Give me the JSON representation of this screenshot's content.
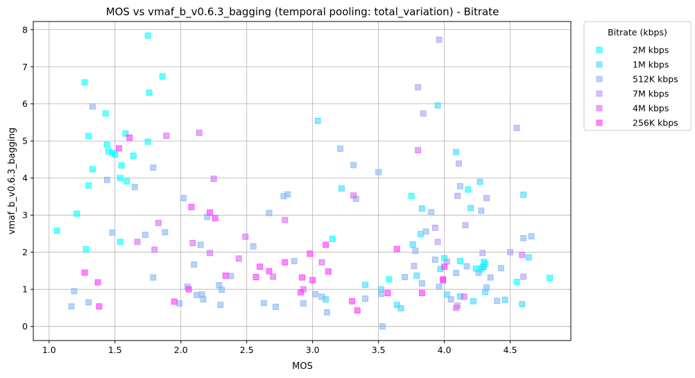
{
  "chart_data": {
    "type": "scatter",
    "title": "MOS vs vmaf_b_v0.6.3_bagging (temporal pooling: total_variation) - Bitrate",
    "xlabel": "MOS",
    "ylabel": "vmaf_b_v0.6.3_bagging",
    "xlim": [
      0.88,
      4.96
    ],
    "ylim": [
      -0.38,
      8.22
    ],
    "xticks": [
      "1.0",
      "1.5",
      "2.0",
      "2.5",
      "3.0",
      "3.5",
      "4.0",
      "4.5"
    ],
    "xtick_values": [
      1.0,
      1.5,
      2.0,
      2.5,
      3.0,
      3.5,
      4.0,
      4.5
    ],
    "yticks": [
      "0",
      "1",
      "2",
      "3",
      "4",
      "5",
      "6",
      "7",
      "8"
    ],
    "ytick_values": [
      0,
      1,
      2,
      3,
      4,
      5,
      6,
      7,
      8
    ],
    "grid": true,
    "marker": "square",
    "legend": {
      "title": "Bitrate (kbps)",
      "placement": "outside-top-right"
    },
    "series": [
      {
        "name": "2M kbps",
        "color": "#00ffff",
        "points": [
          [
            1.06,
            2.58
          ],
          [
            1.21,
            3.04
          ],
          [
            1.27,
            6.58
          ],
          [
            1.28,
            2.08
          ],
          [
            1.3,
            5.13
          ],
          [
            1.3,
            3.8
          ],
          [
            1.33,
            4.24
          ],
          [
            1.43,
            5.74
          ],
          [
            1.44,
            4.9
          ],
          [
            1.45,
            4.72
          ],
          [
            1.48,
            4.68
          ],
          [
            1.5,
            4.63
          ],
          [
            1.54,
            2.28
          ],
          [
            1.54,
            4.0
          ],
          [
            1.55,
            4.34
          ],
          [
            1.58,
            5.2
          ],
          [
            1.59,
            3.91
          ],
          [
            1.64,
            4.6
          ],
          [
            1.75,
            7.84
          ],
          [
            1.75,
            4.98
          ],
          [
            1.76,
            6.3
          ],
          [
            1.86,
            6.74
          ],
          [
            3.15,
            2.36
          ],
          [
            3.58,
            1.27
          ],
          [
            3.75,
            3.52
          ],
          [
            4.0,
            1.84
          ],
          [
            4.12,
            1.76
          ],
          [
            4.18,
            3.69
          ],
          [
            4.24,
            1.56
          ],
          [
            4.28,
            1.54
          ],
          [
            4.29,
            1.6
          ],
          [
            4.3,
            1.74
          ],
          [
            4.31,
            1.69
          ],
          [
            4.55,
            1.2
          ],
          [
            4.8,
            1.31
          ]
        ]
      },
      {
        "name": "1M kbps",
        "color": "#40d8ff",
        "points": [
          [
            3.04,
            5.54
          ],
          [
            3.22,
            3.72
          ],
          [
            3.4,
            1.12
          ],
          [
            3.52,
            1.0
          ],
          [
            3.64,
            0.58
          ],
          [
            3.67,
            0.49
          ],
          [
            3.76,
            2.21
          ],
          [
            3.79,
            1.37
          ],
          [
            3.82,
            2.49
          ],
          [
            3.83,
            3.18
          ],
          [
            3.95,
            5.96
          ],
          [
            3.97,
            1.55
          ],
          [
            4.02,
            0.86
          ],
          [
            4.09,
            4.7
          ],
          [
            4.12,
            0.81
          ],
          [
            4.22,
            0.68
          ],
          [
            4.27,
            3.9
          ],
          [
            4.3,
            1.61
          ],
          [
            4.31,
            0.93
          ],
          [
            4.59,
            0.6
          ],
          [
            4.6,
            3.55
          ],
          [
            4.64,
            1.86
          ],
          [
            4.46,
            0.72
          ],
          [
            4.2,
            3.19
          ],
          [
            3.1,
            0.73
          ]
        ]
      },
      {
        "name": "512K kbps",
        "color": "#85b5f3",
        "points": [
          [
            1.17,
            0.54
          ],
          [
            1.19,
            0.95
          ],
          [
            1.3,
            0.65
          ],
          [
            1.33,
            5.93
          ],
          [
            1.44,
            3.95
          ],
          [
            1.48,
            2.53
          ],
          [
            1.65,
            3.76
          ],
          [
            1.73,
            2.47
          ],
          [
            1.79,
            1.32
          ],
          [
            1.79,
            4.28
          ],
          [
            1.88,
            2.54
          ],
          [
            1.99,
            0.62
          ],
          [
            2.02,
            3.46
          ],
          [
            2.05,
            1.07
          ],
          [
            2.1,
            1.67
          ],
          [
            2.12,
            0.85
          ],
          [
            2.15,
            2.2
          ],
          [
            2.16,
            0.86
          ],
          [
            2.17,
            0.73
          ],
          [
            2.2,
            2.95
          ],
          [
            2.29,
            1.11
          ],
          [
            2.3,
            0.58
          ],
          [
            2.31,
            0.99
          ],
          [
            2.38,
            1.36
          ],
          [
            2.55,
            2.16
          ],
          [
            2.63,
            0.63
          ],
          [
            2.67,
            3.06
          ],
          [
            2.72,
            0.53
          ],
          [
            2.78,
            3.51
          ],
          [
            2.81,
            3.56
          ],
          [
            2.86,
            1.76
          ],
          [
            2.93,
            0.62
          ],
          [
            3.02,
            0.87
          ],
          [
            3.07,
            0.8
          ],
          [
            3.11,
            0.38
          ],
          [
            3.21,
            4.79
          ],
          [
            3.31,
            4.35
          ],
          [
            3.33,
            3.44
          ],
          [
            3.4,
            0.75
          ],
          [
            3.5,
            4.16
          ],
          [
            3.52,
            0.88
          ],
          [
            3.53,
            0.0
          ],
          [
            3.7,
            1.33
          ],
          [
            3.78,
            2.04
          ],
          [
            3.83,
            1.16
          ],
          [
            3.86,
            2.56
          ],
          [
            3.9,
            3.08
          ],
          [
            3.93,
            1.8
          ],
          [
            3.96,
            1.07
          ],
          [
            4.05,
            0.73
          ],
          [
            4.09,
            1.44
          ],
          [
            4.12,
            3.78
          ],
          [
            4.17,
            1.62
          ],
          [
            4.26,
            1.45
          ],
          [
            4.28,
            3.12
          ],
          [
            4.32,
            1.05
          ],
          [
            4.35,
            1.32
          ],
          [
            4.4,
            0.69
          ],
          [
            4.43,
            1.57
          ],
          [
            4.6,
            2.38
          ],
          [
            4.66,
            2.43
          ]
        ]
      },
      {
        "name": "7M kbps",
        "color": "#b79af4",
        "points": [
          [
            3.77,
            1.63
          ],
          [
            3.8,
            6.45
          ],
          [
            3.84,
            5.74
          ],
          [
            3.93,
            2.66
          ],
          [
            3.95,
            2.28
          ],
          [
            3.96,
            7.73
          ],
          [
            4.02,
            1.75
          ],
          [
            4.1,
            0.56
          ],
          [
            4.11,
            4.39
          ],
          [
            4.16,
            2.73
          ],
          [
            4.32,
            3.46
          ],
          [
            4.5,
            2.0
          ],
          [
            4.55,
            5.35
          ],
          [
            4.6,
            1.34
          ],
          [
            4.1,
            3.52
          ],
          [
            4.29,
            1.98
          ]
        ]
      },
      {
        "name": "4M kbps",
        "color": "#d86af4",
        "points": [
          [
            1.67,
            2.28
          ],
          [
            1.8,
            2.07
          ],
          [
            1.83,
            2.79
          ],
          [
            1.89,
            5.14
          ],
          [
            2.09,
            2.25
          ],
          [
            2.14,
            5.22
          ],
          [
            2.22,
            1.98
          ],
          [
            2.25,
            3.98
          ],
          [
            2.44,
            1.83
          ],
          [
            2.49,
            2.42
          ],
          [
            2.7,
            1.34
          ],
          [
            2.79,
            2.87
          ],
          [
            2.93,
            1.0
          ],
          [
            3.07,
            1.73
          ],
          [
            3.31,
            3.53
          ],
          [
            3.8,
            4.75
          ],
          [
            3.99,
            1.24
          ],
          [
            4.09,
            0.5
          ],
          [
            4.15,
            0.8
          ],
          [
            4.59,
            1.93
          ]
        ]
      },
      {
        "name": "256K kbps",
        "color": "#ff33ff",
        "points": [
          [
            1.27,
            1.45
          ],
          [
            1.37,
            1.19
          ],
          [
            1.38,
            0.54
          ],
          [
            1.53,
            4.8
          ],
          [
            1.61,
            5.09
          ],
          [
            1.95,
            0.67
          ],
          [
            2.06,
            1.0
          ],
          [
            2.08,
            3.22
          ],
          [
            2.22,
            3.07
          ],
          [
            2.26,
            2.92
          ],
          [
            2.34,
            1.37
          ],
          [
            2.57,
            1.33
          ],
          [
            2.6,
            1.61
          ],
          [
            2.67,
            1.49
          ],
          [
            2.79,
            1.73
          ],
          [
            2.91,
            0.92
          ],
          [
            2.92,
            1.32
          ],
          [
            2.98,
            1.96
          ],
          [
            3.0,
            1.25
          ],
          [
            3.1,
            2.2
          ],
          [
            3.12,
            1.48
          ],
          [
            3.3,
            0.68
          ],
          [
            3.34,
            0.43
          ],
          [
            3.57,
            0.9
          ],
          [
            3.64,
            2.09
          ],
          [
            3.83,
            0.9
          ],
          [
            3.99,
            1.27
          ],
          [
            4.0,
            1.61
          ]
        ]
      }
    ]
  }
}
